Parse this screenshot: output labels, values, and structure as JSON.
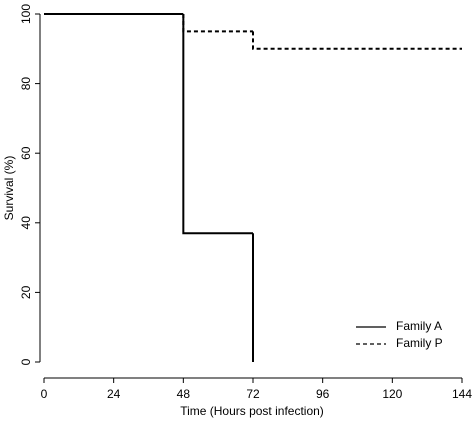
{
  "chart_data": {
    "type": "step",
    "x_label": "Time  (Hours post infection)",
    "y_label": "Survival (%)",
    "xlim": [
      0,
      144
    ],
    "xticks": [
      0,
      24,
      48,
      72,
      96,
      120,
      144
    ],
    "ylim": [
      0,
      100
    ],
    "yticks": [
      0,
      20,
      40,
      60,
      80,
      100
    ],
    "legend": "bottom-right",
    "series": [
      {
        "name": "Family A",
        "color": "#000000",
        "dash": "solid",
        "x": [
          0,
          48,
          72
        ],
        "values": [
          100,
          37,
          0
        ]
      },
      {
        "name": "Family P",
        "color": "#000000",
        "dash": "dashed",
        "x": [
          0,
          48,
          72,
          144
        ],
        "values": [
          100,
          95,
          90,
          90
        ]
      }
    ]
  }
}
